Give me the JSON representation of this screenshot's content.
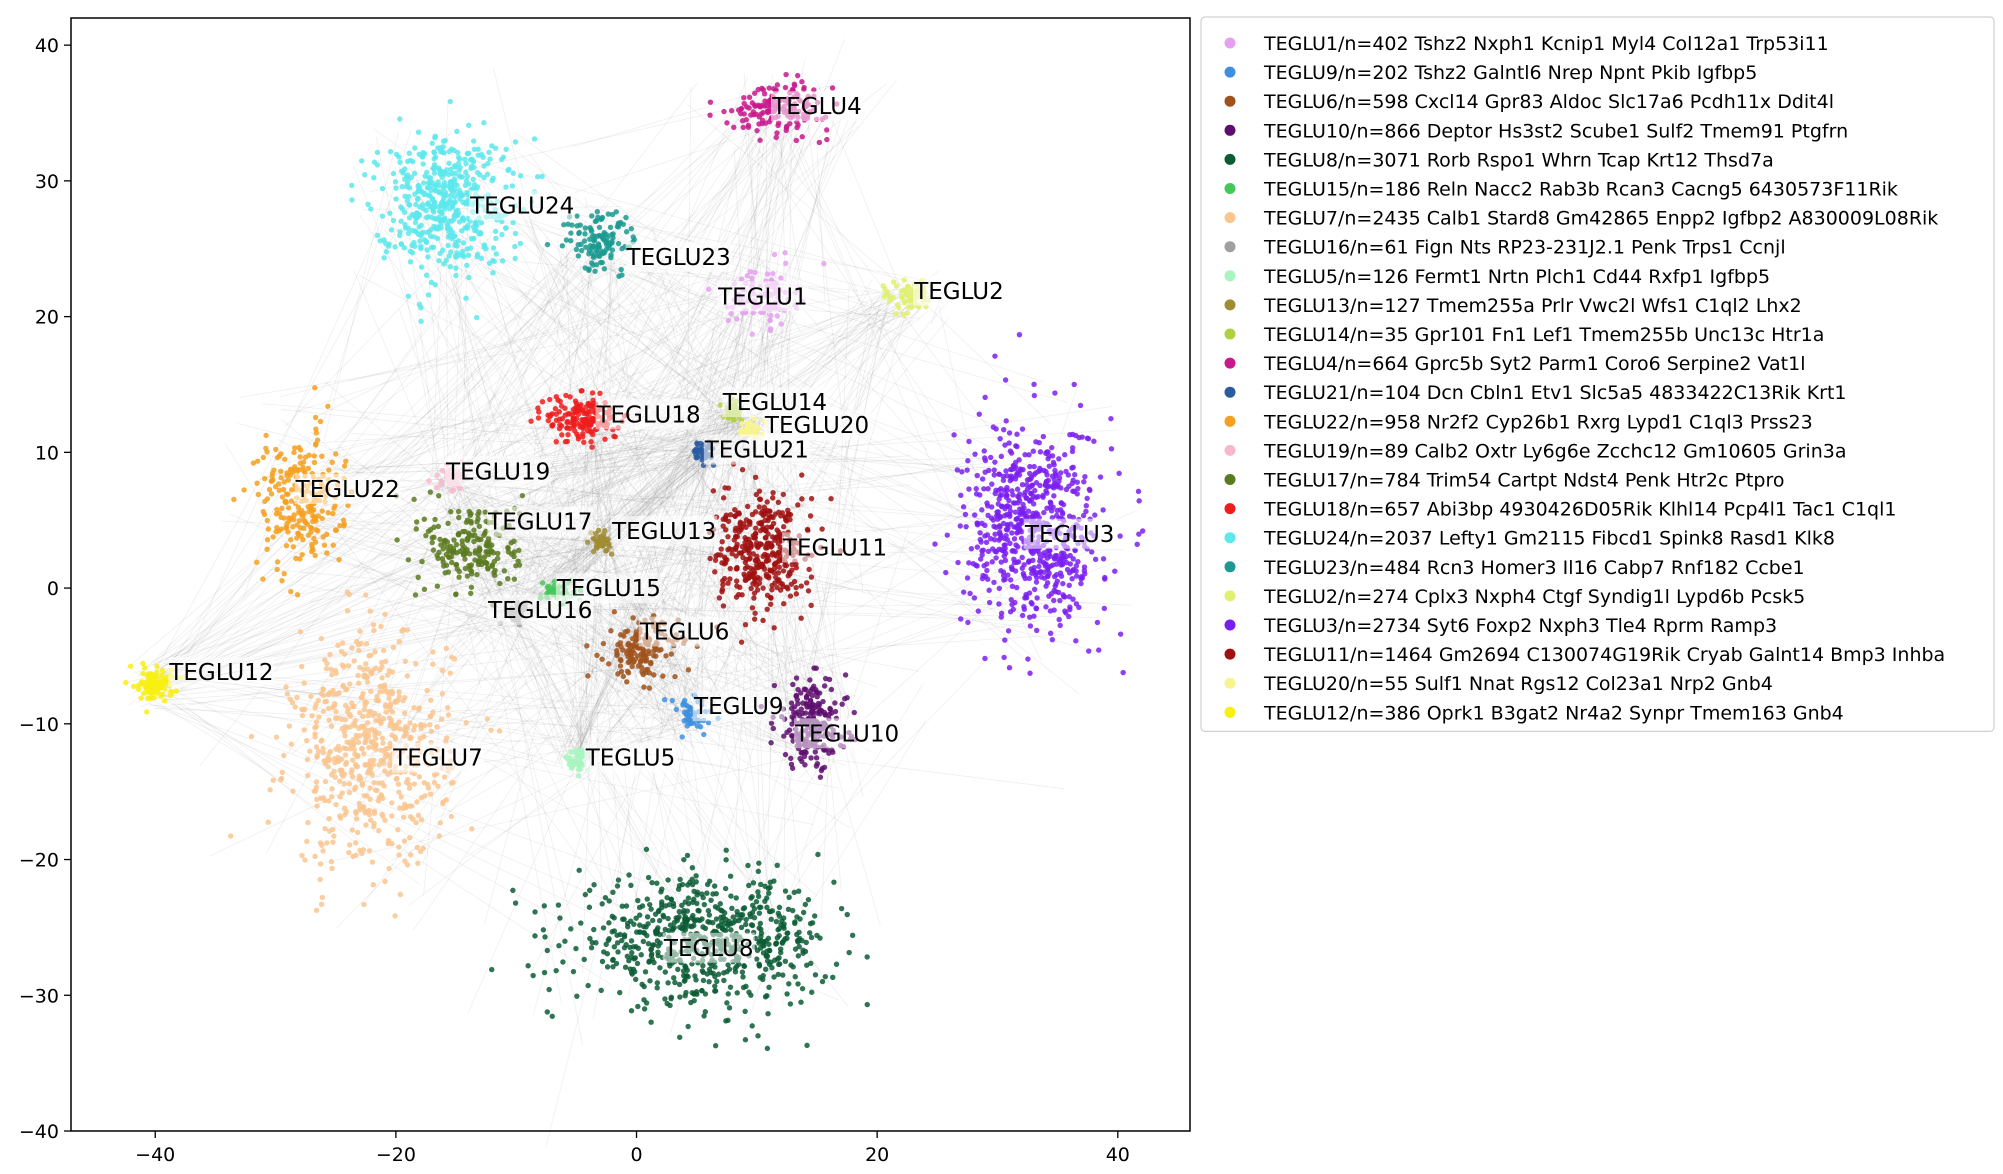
{
  "chart_data": {
    "type": "scatter",
    "xlim": [
      -47,
      46
    ],
    "ylim": [
      -40,
      42
    ],
    "xticks": [
      -40,
      -20,
      0,
      20,
      40
    ],
    "yticks": [
      -40,
      -30,
      -20,
      -10,
      0,
      10,
      20,
      30,
      40
    ],
    "xtick_labels": [
      "−40",
      "−20",
      "0",
      "20",
      "40"
    ],
    "ytick_labels": [
      "−40",
      "−30",
      "−20",
      "−10",
      "0",
      "10",
      "20",
      "30",
      "40"
    ],
    "grid": false,
    "edges": "light gray connections between cells",
    "legend_placement": "outside right, top",
    "series": [
      {
        "name": "TEGLU1/n=402 Tshz2 Nxph1 Kcnip1 Myl4 Col12a1 Trp53i11",
        "label": "TEGLU1",
        "color": "#e6a0f0",
        "n": 402,
        "center": [
          10.5,
          21.5
        ],
        "spread": [
          2.8,
          2.2
        ],
        "label_pos": [
          10.5,
          21.5
        ]
      },
      {
        "name": "TEGLU9/n=202 Tshz2 Galntl6 Nrep Npnt Pkib Igfbp5",
        "label": "TEGLU9",
        "color": "#3f8fe0",
        "n": 202,
        "center": [
          4.5,
          -9.5
        ],
        "spread": [
          2.0,
          1.6
        ],
        "label_pos": [
          8.5,
          -8.7
        ]
      },
      {
        "name": "TEGLU6/n=598 Cxcl14 Gpr83 Aldoc Slc17a6 Pcdh11x Ddit4l",
        "label": "TEGLU6",
        "color": "#a0521b",
        "n": 598,
        "center": [
          0.5,
          -4.5
        ],
        "spread": [
          3.0,
          2.3
        ],
        "label_pos": [
          4.0,
          -3.2
        ]
      },
      {
        "name": "TEGLU10/n=866 Deptor Hs3st2 Scube1 Sulf2 Tmem91 Ptgfrn",
        "label": "TEGLU10",
        "color": "#5e0e6e",
        "n": 866,
        "center": [
          14.5,
          -10.0
        ],
        "spread": [
          3.0,
          3.2
        ],
        "label_pos": [
          17.5,
          -10.7
        ]
      },
      {
        "name": "TEGLU8/n=3071 Rorb Rspo1 Whrn Tcap Krt12 Thsd7a",
        "label": "TEGLU8",
        "color": "#0b5c35",
        "n": 3071,
        "center": [
          5.5,
          -26.0
        ],
        "spread": [
          10.5,
          4.5
        ],
        "label_pos": [
          6.0,
          -26.5
        ]
      },
      {
        "name": "TEGLU15/n=186 Reln Nacc2 Rab3b Rcan3 Cacng5 6430573F11Rik",
        "label": "TEGLU15",
        "color": "#45c85a",
        "n": 186,
        "center": [
          -6.5,
          -0.3
        ],
        "spread": [
          1.4,
          1.0
        ],
        "label_pos": [
          -2.3,
          0.0
        ]
      },
      {
        "name": "TEGLU7/n=2435 Calb1 Stard8 Gm42865 Enpp2 Igfbp2 A830009L08Rik",
        "label": "TEGLU7",
        "color": "#f9c68f",
        "n": 2435,
        "center": [
          -22.0,
          -12.0
        ],
        "spread": [
          6.5,
          8.5
        ],
        "label_pos": [
          -16.5,
          -12.5
        ]
      },
      {
        "name": "TEGLU16/n=61 Fign Nts RP23-231J2.1 Penk Trps1 Ccnjl",
        "label": "TEGLU16",
        "color": "#a0a0a0",
        "n": 61,
        "center": [
          -10.0,
          -1.8
        ],
        "spread": [
          1.0,
          0.8
        ],
        "label_pos": [
          -8.0,
          -1.6
        ]
      },
      {
        "name": "TEGLU5/n=126 Fermt1 Nrtn Plch1 Cd44 Rxfp1 Igfbp5",
        "label": "TEGLU5",
        "color": "#a8f5c0",
        "n": 126,
        "center": [
          -5.0,
          -12.7
        ],
        "spread": [
          1.0,
          0.9
        ],
        "label_pos": [
          -0.5,
          -12.5
        ]
      },
      {
        "name": "TEGLU13/n=127 Tmem255a Prlr Vwc2l Wfs1 C1ql2 Lhx2",
        "label": "TEGLU13",
        "color": "#a08c32",
        "n": 127,
        "center": [
          -3.0,
          3.5
        ],
        "spread": [
          0.8,
          0.8
        ],
        "label_pos": [
          2.3,
          4.2
        ]
      },
      {
        "name": "TEGLU14/n=35 Gpr101 Fn1 Lef1 Tmem255b Unc13c Htr1a",
        "label": "TEGLU14",
        "color": "#b0d040",
        "n": 35,
        "center": [
          8.0,
          13.0
        ],
        "spread": [
          0.8,
          0.6
        ],
        "label_pos": [
          11.5,
          13.7
        ]
      },
      {
        "name": "TEGLU4/n=664 Gprc5b Syt2 Parm1 Coro6 Serpine2 Vat1l",
        "label": "TEGLU4",
        "color": "#c8188c",
        "n": 664,
        "center": [
          12.0,
          35.5
        ],
        "spread": [
          4.0,
          1.8
        ],
        "label_pos": [
          15.0,
          35.5
        ]
      },
      {
        "name": "TEGLU21/n=104 Dcn Cbln1 Etv1 Slc5a5 4833422C13Rik Krt1",
        "label": "TEGLU21",
        "color": "#2a5aa0",
        "n": 104,
        "center": [
          5.5,
          10.0
        ],
        "spread": [
          0.9,
          0.7
        ],
        "label_pos": [
          10.0,
          10.2
        ]
      },
      {
        "name": "TEGLU22/n=958 Nr2f2 Cyp26b1 Rxrg Lypd1 C1ql3 Prss23",
        "label": "TEGLU22",
        "color": "#f5a020",
        "n": 958,
        "center": [
          -28.0,
          6.5
        ],
        "spread": [
          3.5,
          5.0
        ],
        "label_pos": [
          -24.0,
          7.3
        ]
      },
      {
        "name": "TEGLU19/n=89 Calb2 Oxtr Ly6g6e Zcchc12 Gm10605 Grin3a",
        "label": "TEGLU19",
        "color": "#f8b8cc",
        "n": 89,
        "center": [
          -15.5,
          8.0
        ],
        "spread": [
          1.2,
          1.0
        ],
        "label_pos": [
          -11.5,
          8.6
        ]
      },
      {
        "name": "TEGLU17/n=784 Trim54 Cartpt Ndst4 Penk Htr2c Ptpro",
        "label": "TEGLU17",
        "color": "#5a7a20",
        "n": 784,
        "center": [
          -13.5,
          3.0
        ],
        "spread": [
          4.0,
          3.5
        ],
        "label_pos": [
          -8.0,
          4.9
        ]
      },
      {
        "name": "TEGLU18/n=657 Abi3bp 4930426D05Rik Klhl14 Pcp4l1 Tac1 C1ql1",
        "label": "TEGLU18",
        "color": "#ee1c1c",
        "n": 657,
        "center": [
          -4.5,
          12.5
        ],
        "spread": [
          3.0,
          1.8
        ],
        "label_pos": [
          1.0,
          12.8
        ]
      },
      {
        "name": "TEGLU24/n=2037 Lefty1 Gm2115 Fibcd1 Spink8 Rasd1 Klk8",
        "label": "TEGLU24",
        "color": "#5ce8ec",
        "n": 2037,
        "center": [
          -16.0,
          28.5
        ],
        "spread": [
          5.5,
          5.0
        ],
        "label_pos": [
          -9.5,
          28.2
        ]
      },
      {
        "name": "TEGLU23/n=484 Rcn3 Homer3 Il16 Cabp7 Rnf182 Ccbe1",
        "label": "TEGLU23",
        "color": "#1a9a90",
        "n": 484,
        "center": [
          -3.0,
          25.5
        ],
        "spread": [
          3.0,
          2.2
        ],
        "label_pos": [
          3.5,
          24.4
        ]
      },
      {
        "name": "TEGLU2/n=274 Cplx3 Nxph4 Ctgf Syndig1l Lypd6b Pcsk5",
        "label": "TEGLU2",
        "color": "#e0f070",
        "n": 274,
        "center": [
          22.5,
          21.5
        ],
        "spread": [
          2.0,
          1.3
        ],
        "label_pos": [
          26.8,
          21.9
        ]
      },
      {
        "name": "TEGLU3/n=2734 Syt6 Foxp2 Nxph3 Tle4 Rprm Ramp3",
        "label": "TEGLU3",
        "color": "#7a1ef0",
        "n": 2734,
        "center": [
          33.0,
          4.5
        ],
        "spread": [
          5.5,
          7.5
        ],
        "label_pos": [
          36.0,
          4.0
        ]
      },
      {
        "name": "TEGLU11/n=1464 Gm2694 C130074G19Rik Cryab Galnt14 Bmp3 Inhba",
        "label": "TEGLU11",
        "color": "#a01010",
        "n": 1464,
        "center": [
          10.5,
          2.5
        ],
        "spread": [
          4.0,
          4.2
        ],
        "label_pos": [
          16.5,
          3.0
        ]
      },
      {
        "name": "TEGLU20/n=55 Sulf1 Nnat Rgs12 Col23a1 Nrp2 Gnb4",
        "label": "TEGLU20",
        "color": "#f8f590",
        "n": 55,
        "center": [
          9.5,
          11.8
        ],
        "spread": [
          0.8,
          0.6
        ],
        "label_pos": [
          15.0,
          12.0
        ]
      },
      {
        "name": "TEGLU12/n=386 Oprk1 B3gat2 Nr4a2 Synpr Tmem163 Gnb4",
        "label": "TEGLU12",
        "color": "#f8f010",
        "n": 386,
        "center": [
          -40.0,
          -7.0
        ],
        "spread": [
          1.5,
          1.3
        ],
        "label_pos": [
          -34.5,
          -6.2
        ]
      }
    ]
  }
}
